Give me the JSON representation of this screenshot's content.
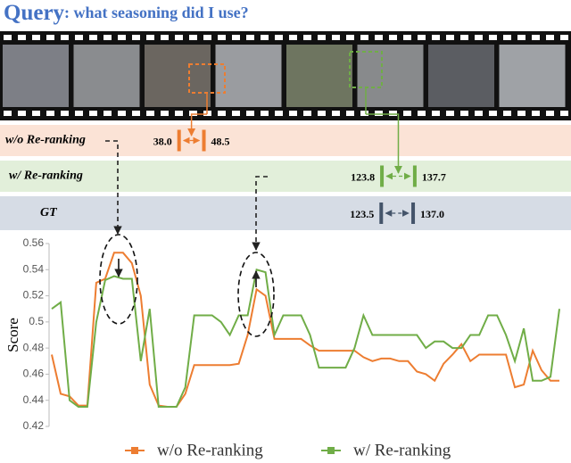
{
  "title": {
    "main": "Query",
    "rest": ": what seasoning did I use?"
  },
  "rows": [
    {
      "label": "w/o Re-ranking",
      "start": {
        "value": 38,
        "label": "38.0"
      },
      "end": 48.5,
      "color": "#ed7d31",
      "background": "#fbe3d6"
    },
    {
      "label": "w/ Re-ranking",
      "start": 123.8,
      "end": 137.7,
      "color": "#70ad47",
      "background": "#e2efda"
    },
    {
      "label": "GT",
      "start": 123.5,
      "end": {
        "value": 137,
        "label": "137.0"
      },
      "color": "#44546a",
      "background": "#d6dce5"
    }
  ],
  "chart_data": {
    "type": "line",
    "ylabel": "Score",
    "ylim": [
      0.42,
      0.56
    ],
    "yticks": [
      0.42,
      0.44,
      0.46,
      0.48,
      0.5,
      0.52,
      0.54,
      0.56
    ],
    "series": [
      {
        "name": "w/o Re-ranking",
        "color": "#ed7d31",
        "values": [
          0.475,
          0.445,
          0.443,
          0.436,
          0.436,
          0.53,
          0.533,
          0.553,
          0.553,
          0.545,
          0.52,
          0.452,
          0.436,
          0.435,
          0.435,
          0.445,
          0.467,
          0.467,
          0.467,
          0.467,
          0.467,
          0.468,
          0.49,
          0.525,
          0.52,
          0.487,
          0.487,
          0.487,
          0.487,
          0.482,
          0.478,
          0.478,
          0.478,
          0.478,
          0.478,
          0.473,
          0.47,
          0.472,
          0.472,
          0.47,
          0.47,
          0.462,
          0.46,
          0.455,
          0.468,
          0.475,
          0.483,
          0.47,
          0.475,
          0.475,
          0.475,
          0.475,
          0.45,
          0.452,
          0.478,
          0.463,
          0.455,
          0.455
        ]
      },
      {
        "name": "w/ Re-ranking",
        "color": "#70ad47",
        "values": [
          0.51,
          0.515,
          0.44,
          0.435,
          0.435,
          0.5,
          0.532,
          0.535,
          0.533,
          0.533,
          0.47,
          0.51,
          0.435,
          0.435,
          0.435,
          0.45,
          0.505,
          0.505,
          0.505,
          0.5,
          0.49,
          0.505,
          0.505,
          0.54,
          0.538,
          0.49,
          0.505,
          0.505,
          0.505,
          0.49,
          0.465,
          0.465,
          0.465,
          0.465,
          0.48,
          0.505,
          0.49,
          0.49,
          0.49,
          0.49,
          0.49,
          0.49,
          0.48,
          0.485,
          0.485,
          0.48,
          0.48,
          0.49,
          0.49,
          0.505,
          0.505,
          0.49,
          0.47,
          0.495,
          0.455,
          0.455,
          0.458,
          0.51
        ]
      }
    ]
  }
}
